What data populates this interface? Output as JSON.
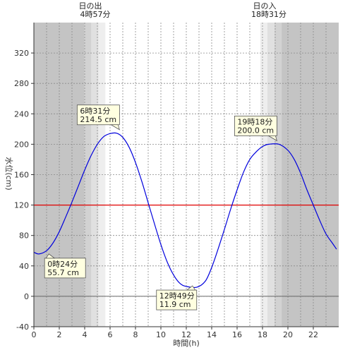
{
  "chart_data": {
    "type": "line",
    "xlabel": "時間(h)",
    "ylabel": "水位(cm)",
    "xlim": [
      0,
      24
    ],
    "ylim": [
      -40,
      360
    ],
    "x_ticks": [
      0,
      2,
      4,
      6,
      8,
      10,
      12,
      14,
      16,
      18,
      20,
      22
    ],
    "y_ticks": [
      -40,
      0,
      40,
      80,
      120,
      160,
      200,
      240,
      280,
      320
    ],
    "reference_line": {
      "y": 120,
      "color": "#e00000"
    },
    "series_color": "#0000dd",
    "series": [
      {
        "x": [
          0,
          0.4,
          1,
          1.5,
          2,
          2.5,
          3,
          3.5,
          4,
          4.5,
          5,
          5.5,
          6,
          6.52,
          7,
          7.5,
          8,
          8.5,
          9,
          9.5,
          10,
          10.5,
          11,
          11.5,
          12,
          12.82,
          13.5,
          14,
          14.5,
          15,
          15.5,
          16,
          16.5,
          17,
          17.5,
          18,
          18.5,
          19.3,
          20,
          20.5,
          21,
          21.5,
          22,
          22.5,
          23,
          23.5,
          23.83
        ],
        "y": [
          58,
          55.7,
          60,
          70,
          85,
          104,
          124,
          145,
          166,
          185,
          200,
          210,
          214,
          214.5,
          209,
          196,
          176,
          151,
          123,
          95,
          68,
          45,
          28,
          17,
          13,
          11.9,
          20,
          38,
          62,
          88,
          115,
          140,
          163,
          180,
          190,
          197,
          200,
          200,
          192,
          180,
          162,
          140,
          120,
          100,
          82,
          70,
          62
        ]
      }
    ],
    "annotations": [
      {
        "time": "0時24分",
        "value": "55.7 cm"
      },
      {
        "time": "6時31分",
        "value": "214.5 cm"
      },
      {
        "time": "12時49分",
        "value": "11.9 cm"
      },
      {
        "time": "19時18分",
        "value": "200.0 cm"
      }
    ],
    "sunrise": {
      "label": "日の出",
      "time": "4時57分",
      "hour": 4.95
    },
    "sunset": {
      "label": "日の入",
      "time": "18時31分",
      "hour": 18.517
    }
  }
}
